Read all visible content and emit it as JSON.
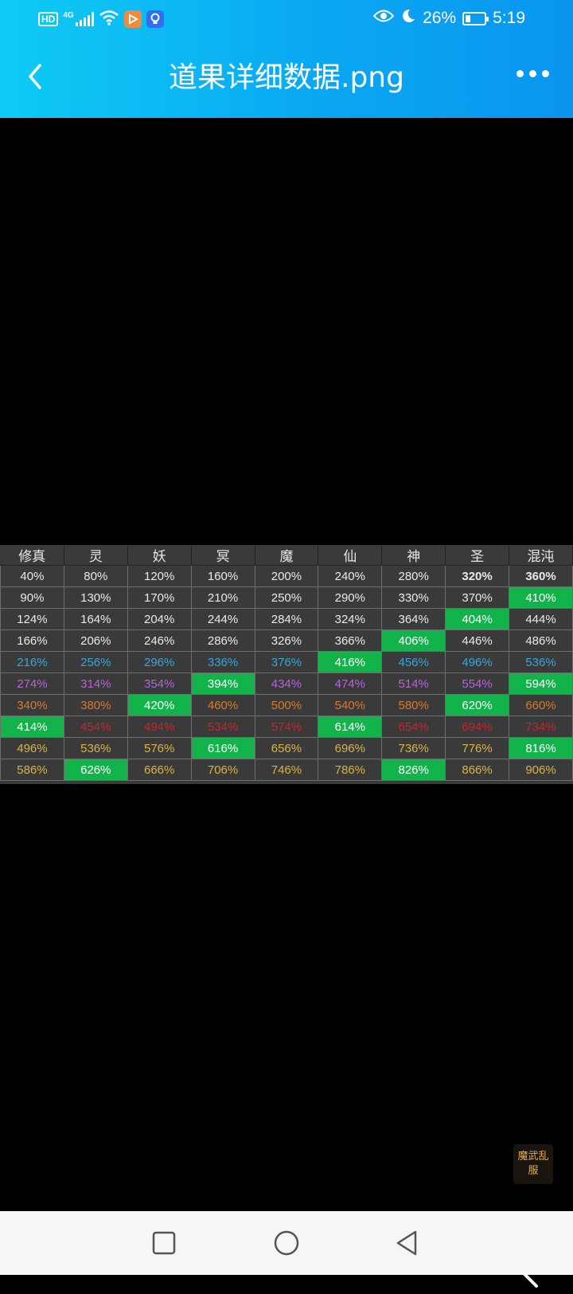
{
  "status_bar": {
    "hd_label": "HD",
    "network_label": "4G",
    "battery_percent": "26%",
    "battery_level": 0.26,
    "time": "5:19",
    "icons": [
      "signal-icon",
      "wifi-icon",
      "video-app-icon",
      "bulb-app-icon",
      "eye-icon",
      "moon-icon",
      "battery-icon"
    ]
  },
  "toolbar": {
    "title": "道果详细数据.png",
    "back_icon": "chevron-left-icon",
    "more_icon": "more-dots-icon"
  },
  "sheet": {
    "headers": [
      "修真",
      "灵",
      "妖",
      "冥",
      "魔",
      "仙",
      "神",
      "圣",
      "混沌"
    ],
    "rows": [
      {
        "tier": "white",
        "values": [
          "40%",
          "80%",
          "120%",
          "160%",
          "200%",
          "240%",
          "280%",
          "320%",
          "360%"
        ],
        "highlight": -1,
        "bold": [
          7,
          8
        ]
      },
      {
        "tier": "white",
        "values": [
          "90%",
          "130%",
          "170%",
          "210%",
          "250%",
          "290%",
          "330%",
          "370%",
          "410%"
        ],
        "highlight": 8
      },
      {
        "tier": "white",
        "values": [
          "124%",
          "164%",
          "204%",
          "244%",
          "284%",
          "324%",
          "364%",
          "404%",
          "444%"
        ],
        "highlight": 7
      },
      {
        "tier": "white",
        "values": [
          "166%",
          "206%",
          "246%",
          "286%",
          "326%",
          "366%",
          "406%",
          "446%",
          "486%"
        ],
        "highlight": 6
      },
      {
        "tier": "blue",
        "values": [
          "216%",
          "256%",
          "296%",
          "336%",
          "376%",
          "416%",
          "456%",
          "496%",
          "536%"
        ],
        "highlight": 5
      },
      {
        "tier": "purple",
        "values": [
          "274%",
          "314%",
          "354%",
          "394%",
          "434%",
          "474%",
          "514%",
          "554%",
          "594%"
        ],
        "highlight": [
          3,
          8
        ]
      },
      {
        "tier": "orange",
        "values": [
          "340%",
          "380%",
          "420%",
          "460%",
          "500%",
          "540%",
          "580%",
          "620%",
          "660%"
        ],
        "highlight": [
          2,
          7
        ]
      },
      {
        "tier": "red",
        "values": [
          "414%",
          "454%",
          "494%",
          "534%",
          "574%",
          "614%",
          "654%",
          "694%",
          "734%"
        ],
        "highlight": [
          0,
          5
        ]
      },
      {
        "tier": "gold",
        "values": [
          "496%",
          "536%",
          "576%",
          "616%",
          "656%",
          "696%",
          "736%",
          "776%",
          "816%"
        ],
        "highlight": [
          3,
          8
        ]
      },
      {
        "tier": "gold",
        "values": [
          "586%",
          "626%",
          "666%",
          "706%",
          "746%",
          "786%",
          "826%",
          "866%",
          "906%"
        ],
        "highlight": [
          1,
          6
        ]
      }
    ],
    "tier_colors": {
      "white": "#eaeaea",
      "blue": "#36a8d8",
      "purple": "#b564d6",
      "orange": "#d77a32",
      "red": "#c2262e",
      "gold": "#d6b448",
      "highlight": "#12b34a"
    }
  },
  "watermark": {
    "text": [
      "魔",
      "武",
      "乱",
      "服"
    ]
  },
  "viewer_tools": {
    "edit_icon": "magic-wand-icon"
  },
  "navbar": {
    "icons": [
      "recent-apps-square-icon",
      "home-circle-icon",
      "back-triangle-icon"
    ]
  }
}
